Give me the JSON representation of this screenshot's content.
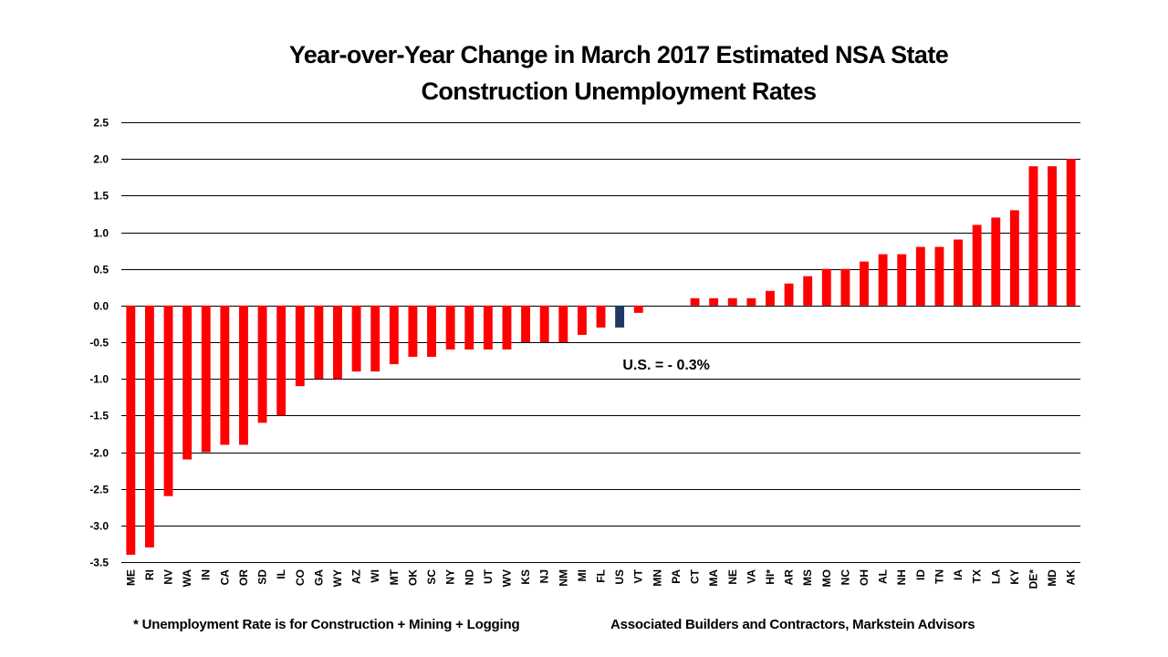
{
  "title_lines": [
    "Year-over-Year Change in March 2017 Estimated NSA State",
    "Construction Unemployment Rates"
  ],
  "footnote": "* Unemployment Rate is for Construction + Mining + Logging",
  "source": "Associated Builders and Contractors, Markstein Advisors",
  "colors": {
    "bar": "#ff0000",
    "us_bar": "#1f3864",
    "gridline": "#000000",
    "text": "#000000"
  },
  "chart_data": {
    "type": "bar",
    "title": "Year-over-Year Change in March 2017 Estimated NSA State Construction Unemployment Rates",
    "xlabel": "",
    "ylabel": "",
    "ylim": [
      -3.5,
      2.5
    ],
    "yticks": [
      "2.5",
      "2.0",
      "1.5",
      "1.0",
      "0.5",
      "0.0",
      "-0.5",
      "-1.0",
      "-1.5",
      "-2.0",
      "-2.5",
      "-3.0",
      "-3.5"
    ],
    "grid": true,
    "categories": [
      "ME",
      "RI",
      "NV",
      "WA",
      "IN",
      "CA",
      "OR",
      "SD",
      "IL",
      "CO",
      "GA",
      "WY",
      "AZ",
      "WI",
      "MT",
      "OK",
      "SC",
      "NY",
      "ND",
      "UT",
      "WV",
      "KS",
      "NJ",
      "NM",
      "MI",
      "FL",
      "US",
      "VT",
      "MN",
      "PA",
      "CT",
      "MA",
      "NE",
      "VA",
      "HI*",
      "AR",
      "MS",
      "MO",
      "NC",
      "OH",
      "AL",
      "NH",
      "ID",
      "TN",
      "IA",
      "TX",
      "LA",
      "KY",
      "DE*",
      "MD",
      "AK"
    ],
    "values": [
      -3.4,
      -3.3,
      -2.6,
      -2.1,
      -2.0,
      -1.9,
      -1.9,
      -1.6,
      -1.5,
      -1.1,
      -1.0,
      -1.0,
      -0.9,
      -0.9,
      -0.8,
      -0.7,
      -0.7,
      -0.6,
      -0.6,
      -0.6,
      -0.6,
      -0.5,
      -0.5,
      -0.5,
      -0.4,
      -0.3,
      -0.3,
      -0.1,
      0.0,
      0.0,
      0.1,
      0.1,
      0.1,
      0.1,
      0.2,
      0.3,
      0.4,
      0.5,
      0.5,
      0.6,
      0.7,
      0.7,
      0.8,
      0.8,
      0.9,
      1.1,
      1.2,
      1.3,
      1.9,
      1.9,
      2.0
    ],
    "highlight_category": "US",
    "annotations": [
      {
        "text": "U.S. = - 0.3%",
        "target": "US"
      }
    ]
  }
}
